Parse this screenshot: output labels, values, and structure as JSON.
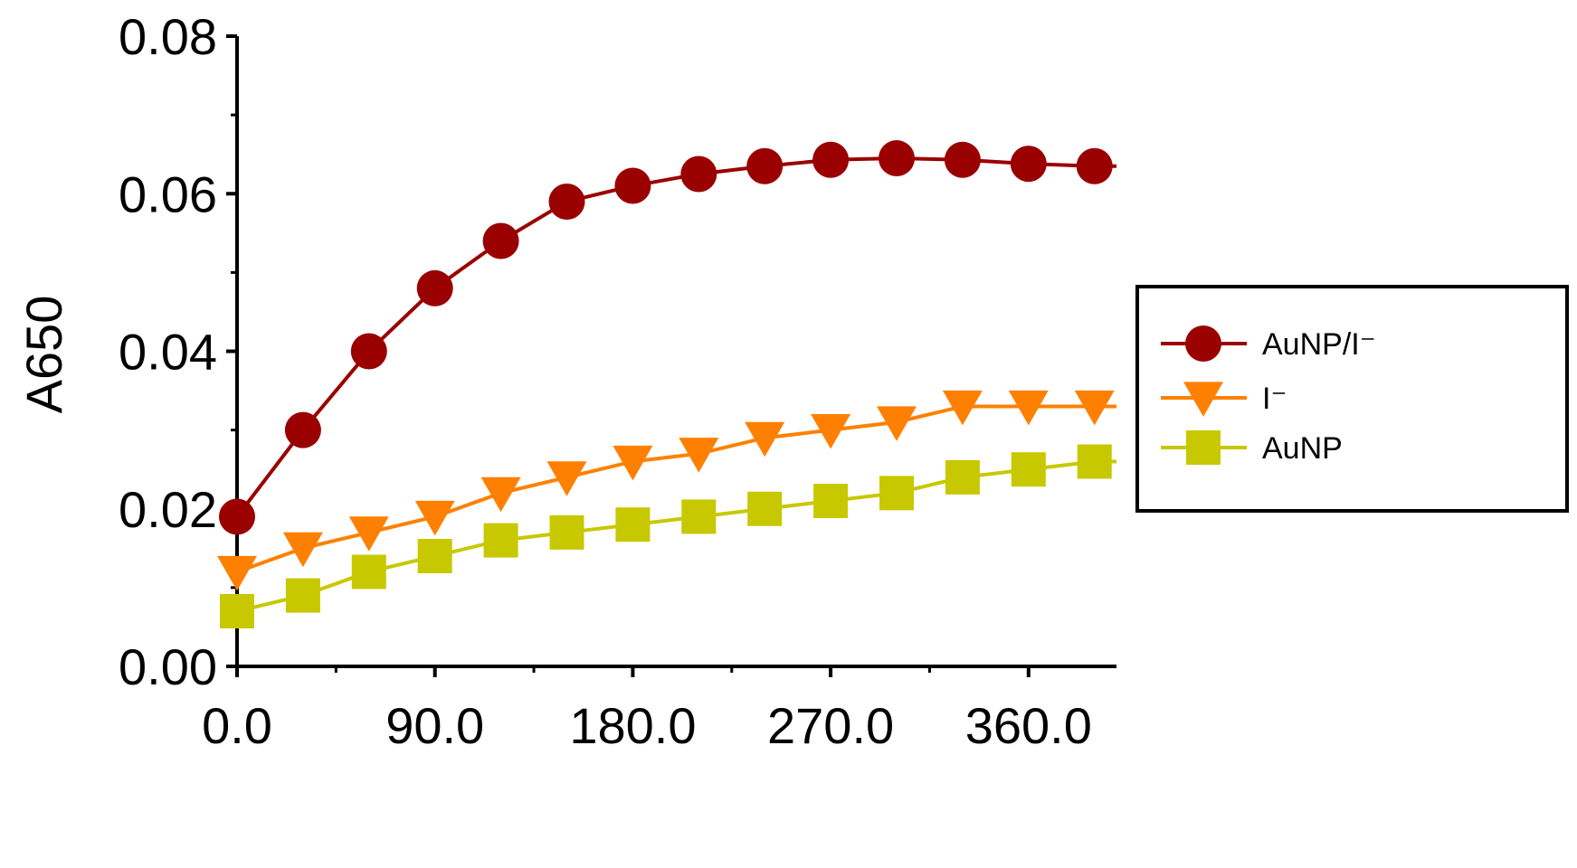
{
  "chart_data": {
    "type": "line",
    "title": "",
    "xlabel": "",
    "ylabel": "A650",
    "xlim": [
      0,
      400
    ],
    "ylim": [
      0,
      0.08
    ],
    "x_ticks": [
      "0.0",
      "90.0",
      "180.0",
      "270.0",
      "360.0"
    ],
    "x_tick_values": [
      0,
      90,
      180,
      270,
      360
    ],
    "y_ticks": [
      "0.00",
      "0.02",
      "0.04",
      "0.06",
      "0.08"
    ],
    "y_tick_values": [
      0,
      0.02,
      0.04,
      0.06,
      0.08
    ],
    "grid": false,
    "legend_position": "right",
    "x": [
      0,
      30,
      60,
      90,
      120,
      150,
      180,
      210,
      240,
      270,
      300,
      330,
      360,
      390
    ],
    "series": [
      {
        "name": "AuNP/I⁻",
        "marker": "circle",
        "color": "#9b0000",
        "values": [
          0.019,
          0.03,
          0.04,
          0.048,
          0.054,
          0.059,
          0.061,
          0.0625,
          0.0635,
          0.0643,
          0.0645,
          0.0643,
          0.0638,
          0.0635
        ]
      },
      {
        "name": "I⁻",
        "marker": "triangle-down",
        "color": "#ff8000",
        "values": [
          0.012,
          0.015,
          0.017,
          0.019,
          0.022,
          0.024,
          0.026,
          0.027,
          0.029,
          0.03,
          0.031,
          0.033,
          0.033,
          0.033
        ]
      },
      {
        "name": "AuNP",
        "marker": "square",
        "color": "#c8c800",
        "values": [
          0.007,
          0.009,
          0.012,
          0.014,
          0.016,
          0.017,
          0.018,
          0.019,
          0.02,
          0.021,
          0.022,
          0.024,
          0.025,
          0.026
        ]
      }
    ]
  }
}
